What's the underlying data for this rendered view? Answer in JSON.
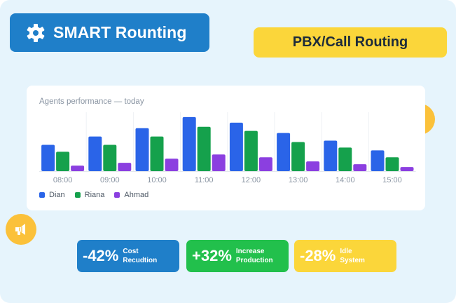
{
  "header": {
    "title": "SMART Rounting",
    "title_icon": "gear-icon",
    "tag": "PBX/Call Routing"
  },
  "colors": {
    "background": "#e6f4fc",
    "title_badge": "#1f7fc9",
    "tag_badge": "#fbd63a",
    "megaphone_badge": "#fbc13a",
    "stat_blue": "#1f7fc9",
    "stat_green": "#22c04c",
    "stat_yellow": "#fbd63a"
  },
  "chart_data": {
    "type": "bar",
    "title": "Agents performance — today",
    "categories": [
      "08:00",
      "09:00",
      "10:00",
      "11:00",
      "12:00",
      "13:00",
      "14:00",
      "15:00"
    ],
    "series": [
      {
        "name": "Dian",
        "color": "#2a64e8",
        "values": [
          38,
          50,
          62,
          78,
          70,
          55,
          44,
          30
        ]
      },
      {
        "name": "Riana",
        "color": "#15a14c",
        "values": [
          28,
          38,
          50,
          64,
          58,
          42,
          34,
          20
        ]
      },
      {
        "name": "Ahmad",
        "color": "#8b3fe0",
        "values": [
          8,
          12,
          18,
          24,
          20,
          14,
          10,
          6
        ]
      }
    ],
    "ylim": [
      0,
      85
    ],
    "legend_position": "bottom-left",
    "grid": false
  },
  "decorations": [
    {
      "name": "megaphone-badge-right",
      "icon": "megaphone-icon"
    },
    {
      "name": "megaphone-badge-left",
      "icon": "megaphone-icon"
    }
  ],
  "stats": [
    {
      "value": "-42%",
      "label_line1": "Cost",
      "label_line2": "Recudtion",
      "color": "#1f7fc9",
      "text_color": "#ffffff"
    },
    {
      "value": "+32%",
      "label_line1": "Increase",
      "label_line2": "Production",
      "color": "#22c04c",
      "text_color": "#ffffff"
    },
    {
      "value": "-28%",
      "label_line1": "Idle",
      "label_line2": "System",
      "color": "#fbd63a",
      "text_color": "#ffffff"
    }
  ]
}
